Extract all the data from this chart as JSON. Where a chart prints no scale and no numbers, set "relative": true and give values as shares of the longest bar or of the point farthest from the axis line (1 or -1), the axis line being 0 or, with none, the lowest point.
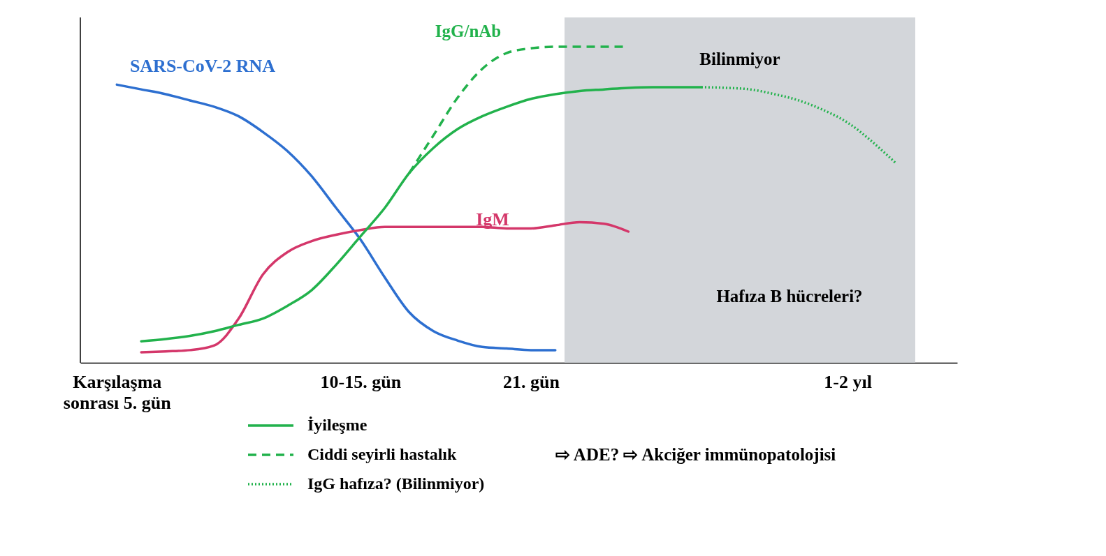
{
  "chart_data": {
    "type": "line",
    "relative": true,
    "categories": [
      "Karşılaşma\nsonrası 5. gün",
      null,
      null,
      null,
      null,
      null,
      null,
      null,
      null,
      null,
      "10-15. gün",
      null,
      null,
      null,
      null,
      null,
      null,
      "21. gün",
      null,
      null,
      null,
      null,
      null,
      null,
      null,
      null,
      null,
      null,
      null,
      null,
      "1-2 yıl",
      null,
      null
    ],
    "series": [
      {
        "name": "SARS-CoV-2 RNA",
        "color": "#2d6fd0",
        "line_style": "solid",
        "values": [
          0.88,
          0.865,
          0.85,
          0.83,
          0.81,
          0.78,
          0.73,
          0.67,
          0.59,
          0.49,
          0.39,
          0.27,
          0.16,
          0.1,
          0.07,
          0.05,
          0.045,
          0.04,
          0.04,
          null,
          null,
          null,
          null,
          null,
          null,
          null,
          null,
          null,
          null,
          null,
          null,
          null,
          null
        ]
      },
      {
        "name": "IgM",
        "color": "#d4376a",
        "line_style": "solid",
        "values": [
          null,
          0.033,
          0.036,
          0.04,
          0.055,
          0.14,
          0.28,
          0.35,
          0.385,
          0.405,
          0.42,
          0.43,
          0.43,
          0.43,
          0.43,
          0.43,
          0.425,
          0.425,
          0.435,
          0.445,
          0.44,
          0.415,
          null,
          null,
          null,
          null,
          null,
          null,
          null,
          null,
          null,
          null,
          null
        ]
      },
      {
        "name": "İyileşme",
        "color": "#22b24c",
        "line_style": "solid",
        "values": [
          null,
          0.068,
          0.075,
          0.085,
          0.1,
          0.12,
          0.14,
          0.18,
          0.23,
          0.31,
          0.4,
          0.49,
          0.6,
          0.68,
          0.74,
          0.78,
          0.81,
          0.835,
          0.85,
          0.86,
          0.865,
          0.87,
          0.872,
          0.872,
          0.872,
          null,
          null,
          null,
          null,
          null,
          null,
          null,
          null
        ]
      },
      {
        "name": "Ciddi seyirli hastalık",
        "color": "#22b24c",
        "line_style": "dashed",
        "values": [
          null,
          null,
          null,
          null,
          null,
          null,
          null,
          null,
          null,
          null,
          null,
          null,
          0.6,
          0.72,
          0.84,
          0.93,
          0.98,
          0.995,
          1.0,
          1.0,
          1.0,
          1.0,
          null,
          null,
          null,
          null,
          null,
          null,
          null,
          null,
          null,
          null,
          null
        ]
      },
      {
        "name": "IgG hafıza? (Bilinmiyor)",
        "color": "#22b24c",
        "line_style": "dotted",
        "values": [
          null,
          null,
          null,
          null,
          null,
          null,
          null,
          null,
          null,
          null,
          null,
          null,
          null,
          null,
          null,
          null,
          null,
          null,
          null,
          null,
          null,
          null,
          null,
          null,
          0.872,
          0.87,
          0.865,
          0.85,
          0.83,
          0.8,
          0.76,
          0.7,
          0.63
        ]
      }
    ],
    "annotations": [
      "IgG/nAb",
      "Hafıza B hücreleri?",
      "⇨ ADE? ⇨ Akciğer immünopatolojisi",
      "Bilinmiyor"
    ],
    "legend": "bottom left",
    "grid": false
  }
}
